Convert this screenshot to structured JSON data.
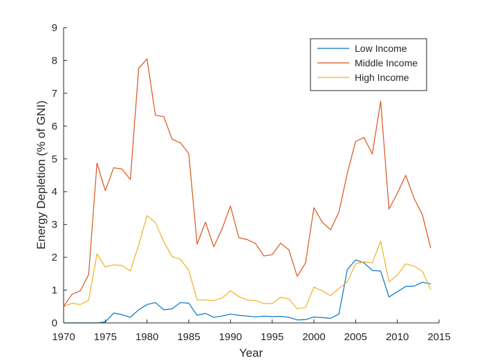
{
  "chart_data": {
    "type": "line",
    "title": "",
    "xlabel": "Year",
    "ylabel": "Energy Depletion (% of GNI)",
    "xlim": [
      1970,
      2015
    ],
    "ylim": [
      0,
      9
    ],
    "x_ticks": [
      1970,
      1975,
      1980,
      1985,
      1990,
      1995,
      2000,
      2005,
      2010,
      2015
    ],
    "y_ticks": [
      0,
      1,
      2,
      3,
      4,
      5,
      6,
      7,
      8,
      9
    ],
    "grid": false,
    "legend_position": "top-right",
    "x": [
      1970,
      1971,
      1972,
      1973,
      1974,
      1975,
      1976,
      1977,
      1978,
      1979,
      1980,
      1981,
      1982,
      1983,
      1984,
      1985,
      1986,
      1987,
      1988,
      1989,
      1990,
      1991,
      1992,
      1993,
      1994,
      1995,
      1996,
      1997,
      1998,
      1999,
      2000,
      2001,
      2002,
      2003,
      2004,
      2005,
      2006,
      2007,
      2008,
      2009,
      2010,
      2011,
      2012,
      2013,
      2014
    ],
    "series": [
      {
        "name": "Low Income",
        "color": "#0072BD",
        "values": [
          0.0,
          0.0,
          0.0,
          0.0,
          0.0,
          0.03,
          0.3,
          0.25,
          0.17,
          0.4,
          0.56,
          0.62,
          0.4,
          0.43,
          0.62,
          0.6,
          0.23,
          0.29,
          0.17,
          0.21,
          0.27,
          0.23,
          0.21,
          0.18,
          0.21,
          0.19,
          0.2,
          0.17,
          0.09,
          0.1,
          0.18,
          0.16,
          0.14,
          0.27,
          1.62,
          1.92,
          1.83,
          1.6,
          1.58,
          0.79,
          0.95,
          1.11,
          1.12,
          1.24,
          1.19
        ]
      },
      {
        "name": "Middle Income",
        "color": "#D95319",
        "values": [
          0.5,
          0.87,
          0.98,
          1.47,
          4.87,
          4.03,
          4.73,
          4.69,
          4.37,
          7.76,
          8.05,
          6.33,
          6.29,
          5.6,
          5.49,
          5.16,
          2.4,
          3.07,
          2.32,
          2.87,
          3.56,
          2.6,
          2.54,
          2.42,
          2.04,
          2.08,
          2.43,
          2.23,
          1.42,
          1.83,
          3.51,
          3.07,
          2.84,
          3.38,
          4.56,
          5.53,
          5.65,
          5.15,
          6.76,
          3.47,
          3.95,
          4.5,
          3.8,
          3.3,
          2.28
        ]
      },
      {
        "name": "High Income",
        "color": "#EDB120",
        "values": [
          0.5,
          0.6,
          0.56,
          0.69,
          2.1,
          1.7,
          1.77,
          1.75,
          1.58,
          2.38,
          3.27,
          3.06,
          2.48,
          2.02,
          1.94,
          1.6,
          0.7,
          0.7,
          0.68,
          0.76,
          0.98,
          0.8,
          0.7,
          0.68,
          0.59,
          0.59,
          0.78,
          0.73,
          0.43,
          0.47,
          1.09,
          0.98,
          0.83,
          1.05,
          1.25,
          1.8,
          1.86,
          1.83,
          2.49,
          1.25,
          1.46,
          1.8,
          1.73,
          1.57,
          1.02
        ]
      }
    ]
  }
}
